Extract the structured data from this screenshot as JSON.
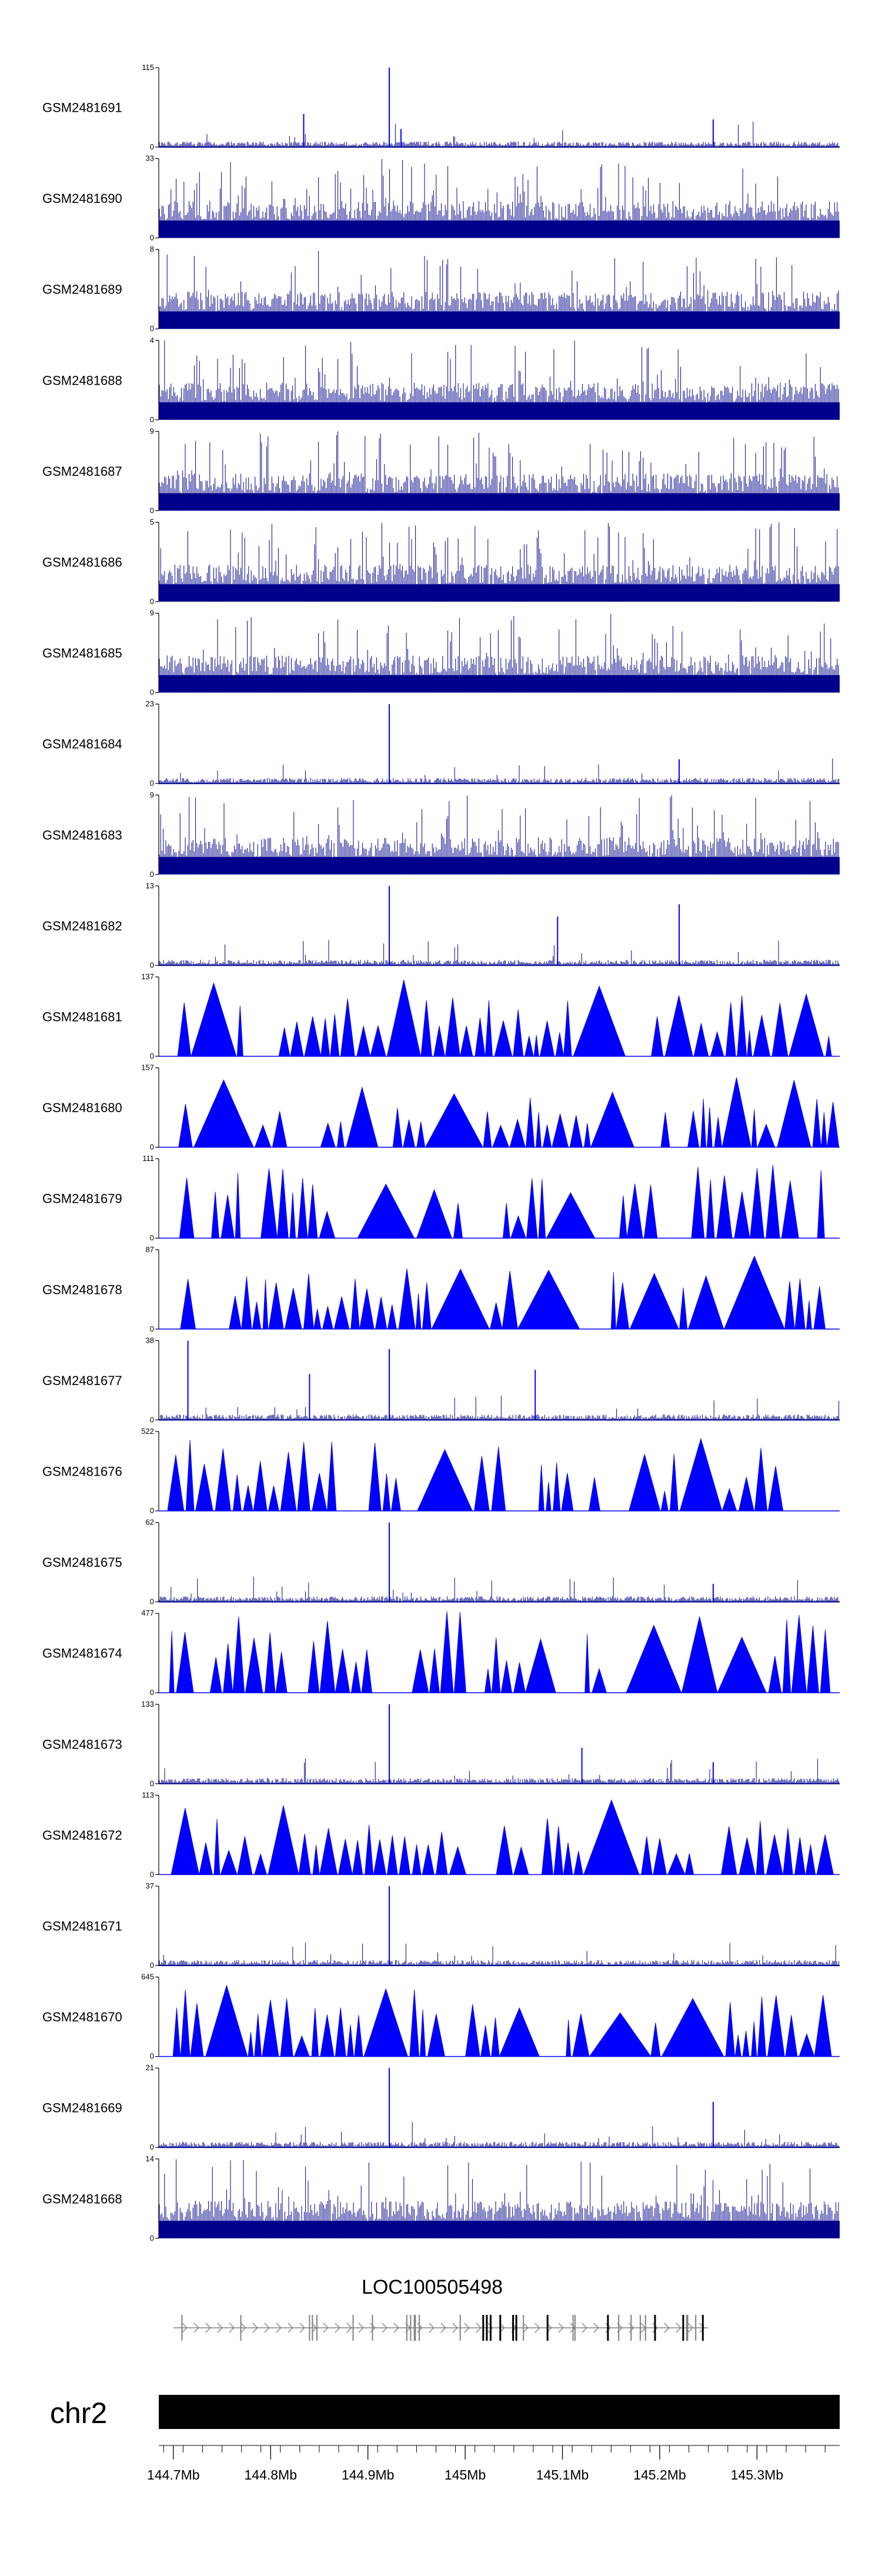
{
  "chart_data": {
    "type": "genome_tracks",
    "tracks": [
      {
        "sample": "GSM2481691",
        "ymax": 115,
        "ymin": 0,
        "style": "spiky",
        "peaks": [
          {
            "x": 144.922,
            "v": 115
          },
          {
            "x": 144.834,
            "v": 48
          },
          {
            "x": 145.255,
            "v": 40
          },
          {
            "x": 144.934,
            "v": 26
          }
        ]
      },
      {
        "sample": "GSM2481690",
        "ymax": 33,
        "ymin": 0,
        "style": "dense"
      },
      {
        "sample": "GSM2481689",
        "ymax": 8,
        "ymin": 0,
        "style": "dense"
      },
      {
        "sample": "GSM2481688",
        "ymax": 4,
        "ymin": 0,
        "style": "dense"
      },
      {
        "sample": "GSM2481687",
        "ymax": 9,
        "ymin": 0,
        "style": "dense"
      },
      {
        "sample": "GSM2481686",
        "ymax": 5,
        "ymin": 0,
        "style": "dense"
      },
      {
        "sample": "GSM2481685",
        "ymax": 9,
        "ymin": 0,
        "style": "dense"
      },
      {
        "sample": "GSM2481684",
        "ymax": 23,
        "ymin": 0,
        "style": "spiky",
        "peaks": [
          {
            "x": 144.922,
            "v": 23
          },
          {
            "x": 145.22,
            "v": 7
          }
        ]
      },
      {
        "sample": "GSM2481683",
        "ymax": 9,
        "ymin": 0,
        "style": "dense"
      },
      {
        "sample": "GSM2481682",
        "ymax": 13,
        "ymin": 0,
        "style": "spiky",
        "peaks": [
          {
            "x": 144.922,
            "v": 13
          },
          {
            "x": 145.22,
            "v": 10
          },
          {
            "x": 145.095,
            "v": 8
          }
        ]
      },
      {
        "sample": "GSM2481681",
        "ymax": 137,
        "ymin": 0,
        "style": "triangles"
      },
      {
        "sample": "GSM2481680",
        "ymax": 157,
        "ymin": 0,
        "style": "triangles"
      },
      {
        "sample": "GSM2481679",
        "ymax": 111,
        "ymin": 0,
        "style": "triangles"
      },
      {
        "sample": "GSM2481678",
        "ymax": 87,
        "ymin": 0,
        "style": "triangles"
      },
      {
        "sample": "GSM2481677",
        "ymax": 38,
        "ymin": 0,
        "style": "spiky",
        "peaks": [
          {
            "x": 144.715,
            "v": 38
          },
          {
            "x": 144.922,
            "v": 34
          },
          {
            "x": 145.072,
            "v": 24
          },
          {
            "x": 144.84,
            "v": 22
          }
        ]
      },
      {
        "sample": "GSM2481676",
        "ymax": 522,
        "ymin": 0,
        "style": "triangles"
      },
      {
        "sample": "GSM2481675",
        "ymax": 62,
        "ymin": 0,
        "style": "spiky",
        "peaks": [
          {
            "x": 144.922,
            "v": 62
          },
          {
            "x": 145.255,
            "v": 14
          }
        ]
      },
      {
        "sample": "GSM2481674",
        "ymax": 477,
        "ymin": 0,
        "style": "triangles"
      },
      {
        "sample": "GSM2481673",
        "ymax": 133,
        "ymin": 0,
        "style": "spiky",
        "peaks": [
          {
            "x": 144.922,
            "v": 133
          },
          {
            "x": 145.12,
            "v": 60
          },
          {
            "x": 145.255,
            "v": 36
          }
        ]
      },
      {
        "sample": "GSM2481672",
        "ymax": 113,
        "ymin": 0,
        "style": "triangles"
      },
      {
        "sample": "GSM2481671",
        "ymax": 37,
        "ymin": 0,
        "style": "spiky",
        "peaks": [
          {
            "x": 144.922,
            "v": 37
          }
        ]
      },
      {
        "sample": "GSM2481670",
        "ymax": 645,
        "ymin": 0,
        "style": "triangles"
      },
      {
        "sample": "GSM2481669",
        "ymax": 21,
        "ymin": 0,
        "style": "spiky",
        "peaks": [
          {
            "x": 144.922,
            "v": 21
          },
          {
            "x": 145.255,
            "v": 12
          }
        ]
      },
      {
        "sample": "GSM2481668",
        "ymax": 14,
        "ymin": 0,
        "style": "dense"
      }
    ],
    "gene": {
      "name": "LOC100505498",
      "start_mb": 144.7,
      "end_mb": 145.25
    },
    "chromosome": "chr2",
    "xrange_mb": [
      144.685,
      145.385
    ],
    "x_ticks_mb": [
      144.7,
      144.8,
      144.9,
      145.0,
      145.1,
      145.2,
      145.3
    ],
    "x_tick_labels": [
      "144.7Mb",
      "144.8Mb",
      "144.9Mb",
      "145Mb",
      "145.1Mb",
      "145.2Mb",
      "145.3Mb"
    ],
    "colors": {
      "signal": "#0000ff",
      "dense": "#00008b",
      "axis": "#000000",
      "ideogram": "#000000",
      "gene_strand": "#808080"
    }
  }
}
